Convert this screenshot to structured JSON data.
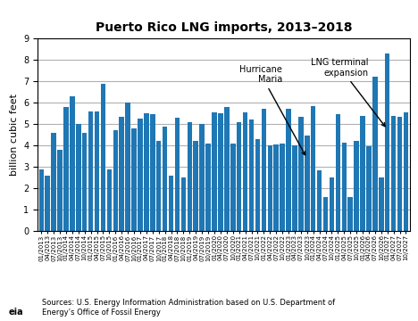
{
  "chart_data": {
    "type": "bar",
    "title": "Puerto Rico LNG imports, 2013–2018",
    "y_label": "billion cubic feet",
    "categories": [
      "01/2013",
      "04/2013",
      "07/2013",
      "10/2013",
      "01/2014",
      "04/2014",
      "07/2014",
      "10/2014",
      "01/2015",
      "04/2015",
      "07/2015",
      "10/2015",
      "01/2016",
      "04/2016",
      "07/2016",
      "10/2016",
      "01/2017",
      "04/2017",
      "07/2017",
      "10/2017",
      "01/2018",
      "04/2018",
      "07/2018",
      "10/2018",
      "01/2019",
      "04/2019",
      "07/2019",
      "10/2019",
      "01/2020",
      "04/2020",
      "07/2020",
      "10/2020",
      "01/2021",
      "04/2021",
      "07/2021",
      "10/2021",
      "01/2022",
      "04/2022",
      "07/2022",
      "10/2022",
      "01/2023",
      "04/2023",
      "07/2023",
      "10/2023",
      "01/2024",
      "04/2024",
      "07/2024",
      "10/2024",
      "01/2025",
      "04/2025",
      "07/2025",
      "10/2025",
      "01/2026",
      "04/2026",
      "07/2026",
      "10/2026",
      "01/2027",
      "04/2027",
      "07/2027",
      "10/2027"
    ],
    "values": [
      2.9,
      2.6,
      4.6,
      3.8,
      5.8,
      6.3,
      5.0,
      4.6,
      5.6,
      5.6,
      6.9,
      2.9,
      4.7,
      5.35,
      6.0,
      4.8,
      5.25,
      5.5,
      5.45,
      4.2,
      4.9,
      2.6,
      5.3,
      2.5,
      5.1,
      4.2,
      5.0,
      4.1,
      5.55,
      5.5,
      5.8,
      4.1,
      5.1,
      5.55,
      5.2,
      4.3,
      5.7,
      4.0,
      4.05,
      4.1,
      5.7,
      4.0,
      5.35,
      4.45,
      5.85,
      2.85,
      1.6,
      2.5,
      5.45,
      4.15,
      1.6,
      4.2,
      5.4,
      3.95,
      7.2,
      2.5,
      8.3,
      5.4,
      5.35,
      5.55
    ],
    "ylim": [
      0,
      9
    ],
    "yticks": [
      0,
      1,
      2,
      3,
      4,
      5,
      6,
      7,
      8,
      9
    ],
    "grid": true,
    "annotations": [
      {
        "text": "Hurricane\nMaria",
        "x": "10/2023",
        "y": 3.4
      },
      {
        "text": "LNG terminal\nexpansion",
        "x": "01/2027",
        "y": 4.75
      }
    ],
    "source": "Sources: U.S. Energy Information Administration based on U.S. Department of\nEnergy’s Office of Fossil Energy",
    "logo_text": "eia"
  }
}
